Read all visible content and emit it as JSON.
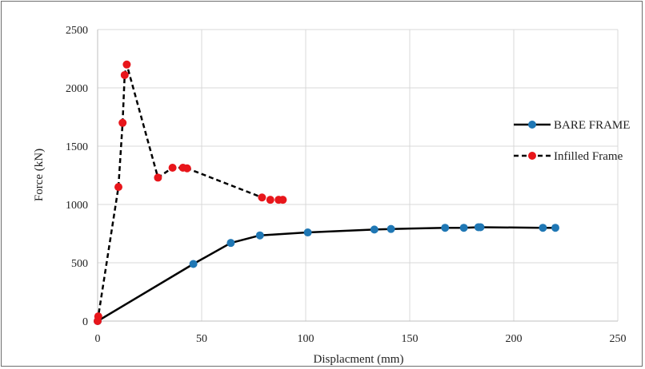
{
  "chart_data": {
    "type": "line",
    "title": "",
    "xlabel": "Displacment (mm)",
    "ylabel": "Force (kN)",
    "xlim": [
      0,
      250
    ],
    "ylim": [
      0,
      2500
    ],
    "xticks": [
      0,
      50,
      100,
      150,
      200,
      250
    ],
    "yticks": [
      0,
      500,
      1000,
      1500,
      2000,
      2500
    ],
    "grid": true,
    "legend_position": "right",
    "series": [
      {
        "name": "BARE FRAME",
        "color": "#1f77b4",
        "line_color": "#000000",
        "line_style": "solid",
        "x": [
          0,
          46,
          64,
          78,
          101,
          133,
          141,
          167,
          176,
          183,
          184,
          214,
          220
        ],
        "y": [
          0,
          490,
          670,
          735,
          760,
          785,
          790,
          800,
          800,
          805,
          805,
          800,
          800
        ]
      },
      {
        "name": "Infilled Frame",
        "color": "#e8161b",
        "line_color": "#000000",
        "line_style": "dashed",
        "x": [
          0,
          0.3,
          10,
          12,
          13,
          14,
          29,
          36,
          41,
          43,
          79,
          83,
          87,
          89
        ],
        "y": [
          0,
          40,
          1150,
          1700,
          2110,
          2200,
          1230,
          1315,
          1315,
          1310,
          1060,
          1040,
          1040,
          1040
        ]
      }
    ]
  }
}
